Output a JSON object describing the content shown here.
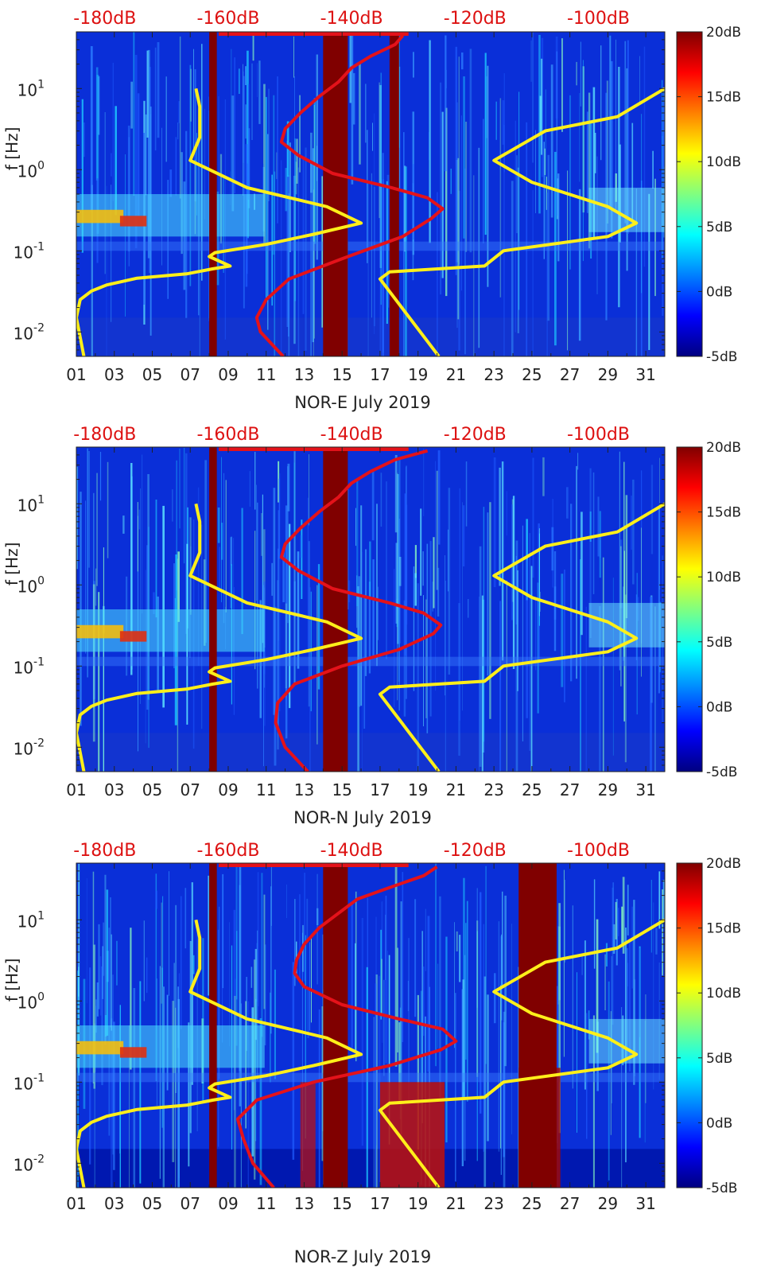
{
  "colors": {
    "background": "#ffffff",
    "top_label": "#dd1111",
    "noise_model_curve": "#ffef1a",
    "station_curve": "#e4121a",
    "band_fill": "#800000",
    "axis": "#222222"
  },
  "colormap_stops": [
    "#000080",
    "#0000ff",
    "#0080ff",
    "#00ffff",
    "#80ff80",
    "#ffff00",
    "#ff8000",
    "#ff0000",
    "#800000"
  ],
  "chart_data": [
    {
      "type": "heatmap",
      "title": "",
      "xlabel": "NOR-E July 2019",
      "ylabel": "f [Hz]",
      "xlim": [
        1,
        32
      ],
      "ylim": [
        0.005,
        50
      ],
      "yscale": "log",
      "x_ticks": [
        1,
        3,
        5,
        7,
        9,
        11,
        13,
        15,
        17,
        19,
        21,
        23,
        25,
        27,
        29,
        31
      ],
      "x_tick_labels": [
        "01",
        "03",
        "05",
        "07",
        "09",
        "11",
        "13",
        "15",
        "17",
        "19",
        "21",
        "23",
        "25",
        "27",
        "29",
        "31"
      ],
      "y_ticks": [
        0.01,
        0.1,
        1,
        10
      ],
      "y_tick_labels": [
        [
          "10",
          "-2"
        ],
        [
          "10",
          "-1"
        ],
        [
          "10",
          "0"
        ],
        [
          "10",
          "1"
        ]
      ],
      "top_ticks": [
        2.5,
        9,
        15.5,
        22,
        28.5
      ],
      "top_tick_labels": [
        "-180dB",
        "-160dB",
        "-140dB",
        "-120dB",
        "-100dB"
      ],
      "colorbar": {
        "min": -5,
        "max": 20,
        "ticks": [
          20,
          15,
          10,
          5,
          0,
          -5
        ],
        "labels": [
          "20dB",
          "15dB",
          "10dB",
          "5dB",
          "0dB",
          "-5dB"
        ]
      },
      "bands": [
        [
          8,
          8.4
        ],
        [
          14,
          15.3
        ],
        [
          17.5,
          18
        ]
      ],
      "noise_model": [
        {
          "name": "left-model",
          "x": [
            1.4,
            1,
            1.2,
            1.8,
            2.6,
            4.2,
            6.8,
            8.2,
            9.1,
            8,
            8.3,
            11,
            13.5,
            16,
            14.2,
            10,
            7,
            7.5,
            7.5,
            7.3
          ],
          "f": [
            0.005,
            0.015,
            0.025,
            0.032,
            0.038,
            0.046,
            0.052,
            0.06,
            0.065,
            0.085,
            0.095,
            0.12,
            0.16,
            0.22,
            0.35,
            0.6,
            1.3,
            2.5,
            6,
            10
          ]
        },
        {
          "name": "right-model",
          "x": [
            20.1,
            17,
            17.5,
            22.5,
            23.5,
            29,
            30.5,
            29,
            25,
            23,
            25.7,
            29.5,
            32
          ],
          "f": [
            0.005,
            0.045,
            0.055,
            0.065,
            0.1,
            0.15,
            0.22,
            0.35,
            0.7,
            1.3,
            3,
            4.5,
            10
          ]
        }
      ],
      "station_curve": {
        "x": [
          11.9,
          10.7,
          10.5,
          11,
          12.2,
          15,
          18.2,
          19.7,
          20.3,
          19.5,
          17.6,
          14.5,
          12.7,
          11.8,
          12,
          12.8,
          13.8,
          14.8,
          15.5,
          16.5,
          17.8,
          18.2
        ],
        "f": [
          0.005,
          0.01,
          0.015,
          0.025,
          0.045,
          0.08,
          0.15,
          0.25,
          0.33,
          0.45,
          0.6,
          0.9,
          1.5,
          2.2,
          3.2,
          5,
          8,
          12,
          18,
          25,
          35,
          45
        ]
      }
    },
    {
      "type": "heatmap",
      "title": "",
      "xlabel": "NOR-N July 2019",
      "ylabel": "f [Hz]",
      "xlim": [
        1,
        32
      ],
      "ylim": [
        0.005,
        50
      ],
      "yscale": "log",
      "x_ticks": [
        1,
        3,
        5,
        7,
        9,
        11,
        13,
        15,
        17,
        19,
        21,
        23,
        25,
        27,
        29,
        31
      ],
      "x_tick_labels": [
        "01",
        "03",
        "05",
        "07",
        "09",
        "11",
        "13",
        "15",
        "17",
        "19",
        "21",
        "23",
        "25",
        "27",
        "29",
        "31"
      ],
      "y_ticks": [
        0.01,
        0.1,
        1,
        10
      ],
      "y_tick_labels": [
        [
          "10",
          "-2"
        ],
        [
          "10",
          "-1"
        ],
        [
          "10",
          "0"
        ],
        [
          "10",
          "1"
        ]
      ],
      "top_ticks": [
        2.5,
        9,
        15.5,
        22,
        28.5
      ],
      "top_tick_labels": [
        "-180dB",
        "-160dB",
        "-140dB",
        "-120dB",
        "-100dB"
      ],
      "colorbar": {
        "min": -5,
        "max": 20,
        "ticks": [
          20,
          15,
          10,
          5,
          0,
          -5
        ],
        "labels": [
          "20dB",
          "15dB",
          "10dB",
          "5dB",
          "0dB",
          "-5dB"
        ]
      },
      "bands": [
        [
          8,
          8.4
        ],
        [
          14,
          15.3
        ]
      ],
      "noise_model": [
        {
          "name": "left-model",
          "x": [
            1.4,
            1,
            1.2,
            1.8,
            2.6,
            4.2,
            6.8,
            8.2,
            9.1,
            8,
            8.3,
            11,
            13.5,
            16,
            14.2,
            10,
            7,
            7.5,
            7.5,
            7.3
          ],
          "f": [
            0.005,
            0.015,
            0.025,
            0.032,
            0.038,
            0.046,
            0.052,
            0.06,
            0.065,
            0.085,
            0.095,
            0.12,
            0.16,
            0.22,
            0.35,
            0.6,
            1.3,
            2.5,
            6,
            10
          ]
        },
        {
          "name": "right-model",
          "x": [
            20.1,
            17,
            17.5,
            22.5,
            23.5,
            29,
            30.5,
            29,
            25,
            23,
            25.7,
            29.5,
            32
          ],
          "f": [
            0.005,
            0.045,
            0.055,
            0.065,
            0.1,
            0.15,
            0.22,
            0.35,
            0.7,
            1.3,
            3,
            4.5,
            10
          ]
        }
      ],
      "station_curve": {
        "x": [
          13.2,
          12,
          11.5,
          11.6,
          12.5,
          15,
          18,
          19.8,
          20.2,
          19.3,
          17.5,
          14.5,
          12.7,
          11.8,
          12,
          12.8,
          13.8,
          14.8,
          15.5,
          16.5,
          17.8,
          19.5
        ],
        "f": [
          0.005,
          0.01,
          0.02,
          0.035,
          0.06,
          0.1,
          0.16,
          0.25,
          0.32,
          0.45,
          0.6,
          0.9,
          1.5,
          2.2,
          3.2,
          5,
          8,
          12,
          18,
          25,
          35,
          45
        ]
      }
    },
    {
      "type": "heatmap",
      "title": "",
      "xlabel": "NOR-Z July 2019",
      "ylabel": "f [Hz]",
      "xlim": [
        1,
        32
      ],
      "ylim": [
        0.005,
        50
      ],
      "yscale": "log",
      "x_ticks": [
        1,
        3,
        5,
        7,
        9,
        11,
        13,
        15,
        17,
        19,
        21,
        23,
        25,
        27,
        29,
        31
      ],
      "x_tick_labels": [
        "01",
        "03",
        "05",
        "07",
        "09",
        "11",
        "13",
        "15",
        "17",
        "19",
        "21",
        "23",
        "25",
        "27",
        "29",
        "31"
      ],
      "y_ticks": [
        0.01,
        0.1,
        1,
        10
      ],
      "y_tick_labels": [
        [
          "10",
          "-2"
        ],
        [
          "10",
          "-1"
        ],
        [
          "10",
          "0"
        ],
        [
          "10",
          "1"
        ]
      ],
      "top_ticks": [
        2.5,
        9,
        15.5,
        22,
        28.5
      ],
      "top_tick_labels": [
        "-180dB",
        "-160dB",
        "-140dB",
        "-120dB",
        "-100dB"
      ],
      "colorbar": {
        "min": -5,
        "max": 20,
        "ticks": [
          20,
          15,
          10,
          5,
          0,
          -5
        ],
        "labels": [
          "20dB",
          "15dB",
          "10dB",
          "5dB",
          "0dB",
          "-5dB"
        ]
      },
      "bands": [
        [
          8,
          8.4
        ],
        [
          14,
          15.3
        ],
        [
          24.3,
          26.3
        ]
      ],
      "noise_model": [
        {
          "name": "left-model",
          "x": [
            1.4,
            1,
            1.2,
            1.8,
            2.6,
            4.2,
            6.8,
            8.2,
            9.1,
            8,
            8.3,
            11,
            13.5,
            16,
            14.2,
            10,
            7,
            7.5,
            7.5,
            7.3
          ],
          "f": [
            0.005,
            0.015,
            0.025,
            0.032,
            0.038,
            0.046,
            0.052,
            0.06,
            0.065,
            0.085,
            0.095,
            0.12,
            0.16,
            0.22,
            0.35,
            0.6,
            1.3,
            2.5,
            6,
            10
          ]
        },
        {
          "name": "right-model",
          "x": [
            20.1,
            17,
            17.5,
            22.5,
            23.5,
            29,
            30.5,
            29,
            25,
            23,
            25.7,
            29.5,
            32
          ],
          "f": [
            0.005,
            0.045,
            0.055,
            0.065,
            0.1,
            0.15,
            0.22,
            0.35,
            0.7,
            1.3,
            3,
            4.5,
            10
          ]
        }
      ],
      "station_curve": {
        "x": [
          11.4,
          10.3,
          9.8,
          9.5,
          10.5,
          13.5,
          17.5,
          20.2,
          21,
          20.3,
          18,
          15,
          13,
          12.5,
          12.6,
          13,
          13.8,
          14.8,
          15.8,
          17.5,
          19.3,
          20
        ],
        "f": [
          0.005,
          0.01,
          0.02,
          0.035,
          0.06,
          0.1,
          0.16,
          0.25,
          0.32,
          0.45,
          0.6,
          0.9,
          1.5,
          2.2,
          3.2,
          5,
          8,
          12,
          18,
          25,
          35,
          45
        ]
      }
    }
  ]
}
